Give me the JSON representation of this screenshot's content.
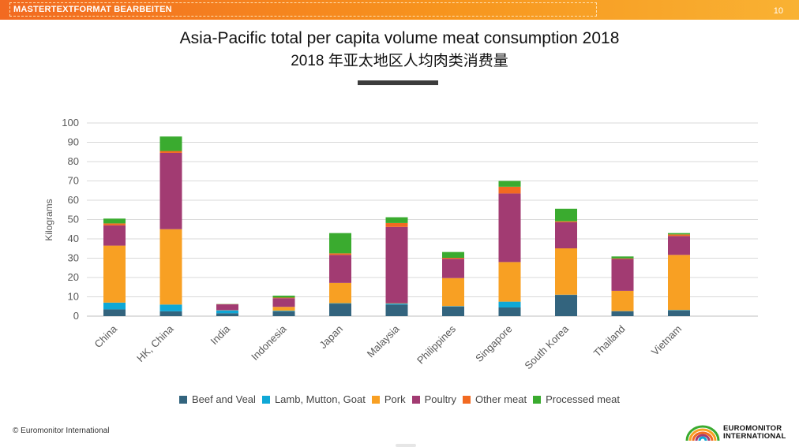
{
  "header": {
    "master_text": "MASTERTEXTFORMAT BEARBEITEN",
    "page_number": "10"
  },
  "title": "Asia-Pacific total per capita volume meat consumption 2018",
  "subtitle": "2018 年亚太地区人均肉类消费量",
  "footer": {
    "copyright": "© Euromonitor International"
  },
  "logo": {
    "line1": "EUROMONITOR",
    "line2": "INTERNATIONAL"
  },
  "chart_data": {
    "type": "bar",
    "stacked": true,
    "ylabel": "Kilograms",
    "ylim": [
      0,
      100
    ],
    "yticks": [
      0,
      10,
      20,
      30,
      40,
      50,
      60,
      70,
      80,
      90,
      100
    ],
    "grid": true,
    "legend_position": "bottom",
    "categories": [
      "China",
      "HK, China",
      "India",
      "Indonesia",
      "Japan",
      "Malaysia",
      "Philippines",
      "Singapore",
      "South Korea",
      "Thailand",
      "Vietnam"
    ],
    "series": [
      {
        "name": "Beef and Veal",
        "color": "#33647e",
        "values": [
          3.5,
          2.5,
          1.5,
          2.5,
          6.5,
          6,
          5,
          4.5,
          11,
          2.5,
          3
        ]
      },
      {
        "name": "Lamb, Mutton, Goat",
        "color": "#0fa8d6",
        "values": [
          3.5,
          3.5,
          1.5,
          0.3,
          0.2,
          0.5,
          0.2,
          3,
          0.1,
          0.1,
          0.2
        ]
      },
      {
        "name": "Pork",
        "color": "#f8a023",
        "values": [
          29.5,
          39,
          0.1,
          2,
          10.5,
          0.2,
          14.5,
          20.5,
          24,
          10.5,
          28.5
        ]
      },
      {
        "name": "Poultry",
        "color": "#a23b72",
        "values": [
          10.5,
          39.5,
          3,
          4.5,
          14.5,
          39.5,
          10,
          35.5,
          13.5,
          16.5,
          9.8
        ]
      },
      {
        "name": "Other meat",
        "color": "#f26a21",
        "values": [
          1,
          1,
          0.1,
          0.3,
          0.8,
          2,
          0.5,
          3.5,
          0.5,
          0.3,
          0.8
        ]
      },
      {
        "name": "Processed meat",
        "color": "#3aab2f",
        "values": [
          2.5,
          7.5,
          0.1,
          1,
          10.5,
          3,
          3,
          3,
          6.5,
          1,
          0.7
        ]
      }
    ]
  }
}
